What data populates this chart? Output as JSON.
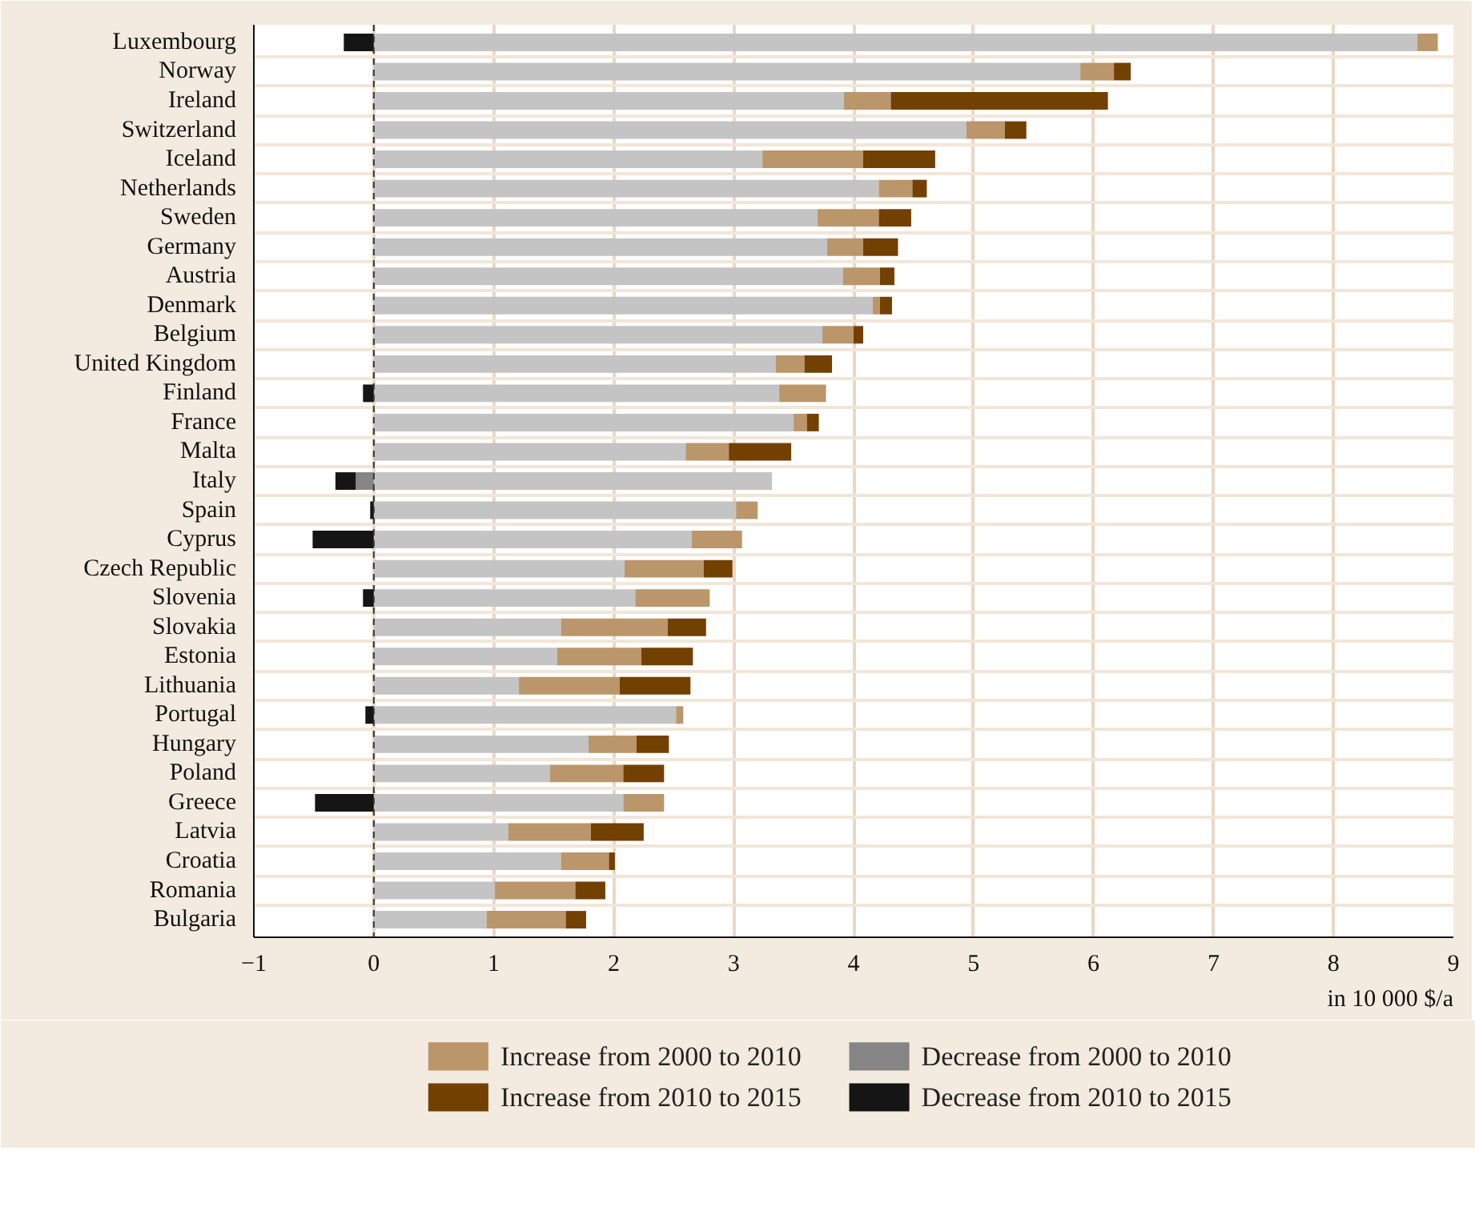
{
  "chart_data": {
    "type": "bar",
    "orientation": "horizontal",
    "stacked": true,
    "xlabel": "in 10 000 $/a",
    "categories": [
      "Luxembourg",
      "Norway",
      "Ireland",
      "Switzerland",
      "Iceland",
      "Netherlands",
      "Sweden",
      "Germany",
      "Austria",
      "Denmark",
      "Belgium",
      "United Kingdom",
      "Finland",
      "France",
      "Malta",
      "Italy",
      "Spain",
      "Cyprus",
      "Czech Republic",
      "Slovenia",
      "Slovakia",
      "Estonia",
      "Lithuania",
      "Portugal",
      "Hungary",
      "Poland",
      "Greece",
      "Latvia",
      "Croatia",
      "Romania",
      "Bulgaria"
    ],
    "series": [
      {
        "color": "#c3c4c3",
        "values": [
          8.7,
          5.89,
          3.92,
          4.94,
          3.24,
          4.21,
          3.7,
          3.78,
          3.91,
          4.16,
          3.74,
          3.35,
          3.38,
          3.5,
          2.6,
          3.32,
          3.02,
          2.65,
          2.09,
          2.18,
          1.56,
          1.53,
          1.21,
          2.52,
          1.79,
          1.47,
          2.08,
          1.12,
          1.56,
          1.01,
          0.94
        ]
      },
      {
        "name": "Increase from 2000 to 2010",
        "color": "#bb966a",
        "values": [
          0.17,
          0.28,
          0.39,
          0.32,
          0.84,
          0.28,
          0.51,
          0.3,
          0.31,
          0.06,
          0.26,
          0.24,
          0.39,
          0.11,
          0.36,
          null,
          0.18,
          0.42,
          0.66,
          0.62,
          0.89,
          0.7,
          0.84,
          0.06,
          0.4,
          0.61,
          0.34,
          0.69,
          0.4,
          0.67,
          0.66
        ]
      },
      {
        "name": "Increase from 2010 to 2015",
        "color": "#724000",
        "values": [
          null,
          0.14,
          1.81,
          0.18,
          0.6,
          0.12,
          0.27,
          0.29,
          0.12,
          0.1,
          0.08,
          0.23,
          null,
          0.1,
          0.52,
          null,
          null,
          null,
          0.24,
          null,
          0.32,
          0.43,
          0.59,
          null,
          0.27,
          0.34,
          null,
          0.44,
          0.05,
          0.25,
          0.17
        ]
      },
      {
        "name": "Decrease from 2000 to 2010",
        "color": "#858585",
        "values": [
          null,
          null,
          null,
          null,
          null,
          null,
          null,
          null,
          null,
          null,
          null,
          null,
          null,
          null,
          null,
          -0.15,
          null,
          null,
          null,
          null,
          null,
          null,
          null,
          null,
          null,
          null,
          null,
          null,
          null,
          null,
          null
        ]
      },
      {
        "name": "Decrease from 2010 to 2015",
        "color": "#151515",
        "values": [
          -0.25,
          null,
          null,
          null,
          null,
          null,
          null,
          null,
          null,
          null,
          null,
          null,
          -0.09,
          null,
          null,
          -0.17,
          -0.03,
          -0.51,
          null,
          -0.09,
          null,
          null,
          null,
          -0.07,
          null,
          null,
          -0.49,
          null,
          null,
          null,
          null
        ]
      }
    ],
    "xlim": [
      -1,
      9
    ],
    "xticks": [
      -1,
      0,
      1,
      2,
      3,
      4,
      5,
      6,
      7,
      8,
      9
    ],
    "grid": "x",
    "legend": "bottom",
    "ref_lines": [
      {
        "axis": "x",
        "value": 0,
        "color": "#333333",
        "line_style": "dashed"
      }
    ]
  }
}
